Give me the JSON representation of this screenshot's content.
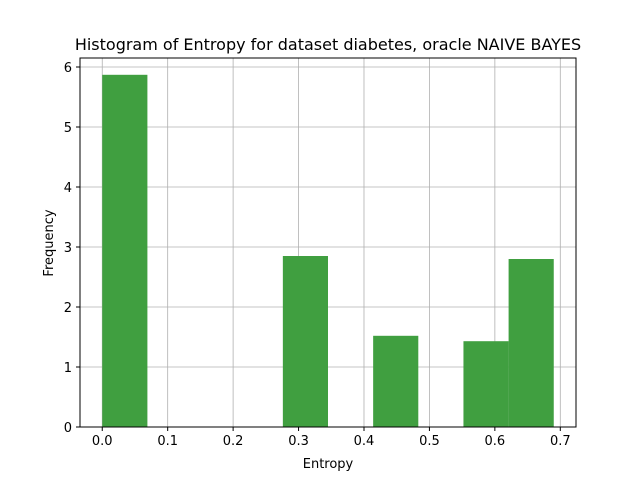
{
  "chart_data": {
    "type": "bar",
    "title": "Histogram of Entropy for dataset diabetes, oracle NAIVE BAYES",
    "xlabel": "Entropy",
    "ylabel": "Frequency",
    "xlim": [
      -0.034,
      0.724
    ],
    "ylim": [
      0,
      6.15
    ],
    "xticks": [
      0.0,
      0.1,
      0.2,
      0.3,
      0.4,
      0.5,
      0.6,
      0.7
    ],
    "xtick_labels": [
      "0.0",
      "0.1",
      "0.2",
      "0.3",
      "0.4",
      "0.5",
      "0.6",
      "0.7"
    ],
    "yticks": [
      0,
      1,
      2,
      3,
      4,
      5,
      6
    ],
    "ytick_labels": [
      "0",
      "1",
      "2",
      "3",
      "4",
      "5",
      "6"
    ],
    "grid": true,
    "bar_color": "#409f40",
    "bins": [
      {
        "x0": 0.0,
        "x1": 0.069,
        "value": 5.87
      },
      {
        "x0": 0.069,
        "x1": 0.138,
        "value": 0
      },
      {
        "x0": 0.138,
        "x1": 0.207,
        "value": 0
      },
      {
        "x0": 0.207,
        "x1": 0.276,
        "value": 0
      },
      {
        "x0": 0.276,
        "x1": 0.345,
        "value": 2.85
      },
      {
        "x0": 0.345,
        "x1": 0.414,
        "value": 0
      },
      {
        "x0": 0.414,
        "x1": 0.483,
        "value": 1.52
      },
      {
        "x0": 0.483,
        "x1": 0.552,
        "value": 0
      },
      {
        "x0": 0.552,
        "x1": 0.621,
        "value": 1.43
      },
      {
        "x0": 0.621,
        "x1": 0.69,
        "value": 2.8
      }
    ]
  }
}
